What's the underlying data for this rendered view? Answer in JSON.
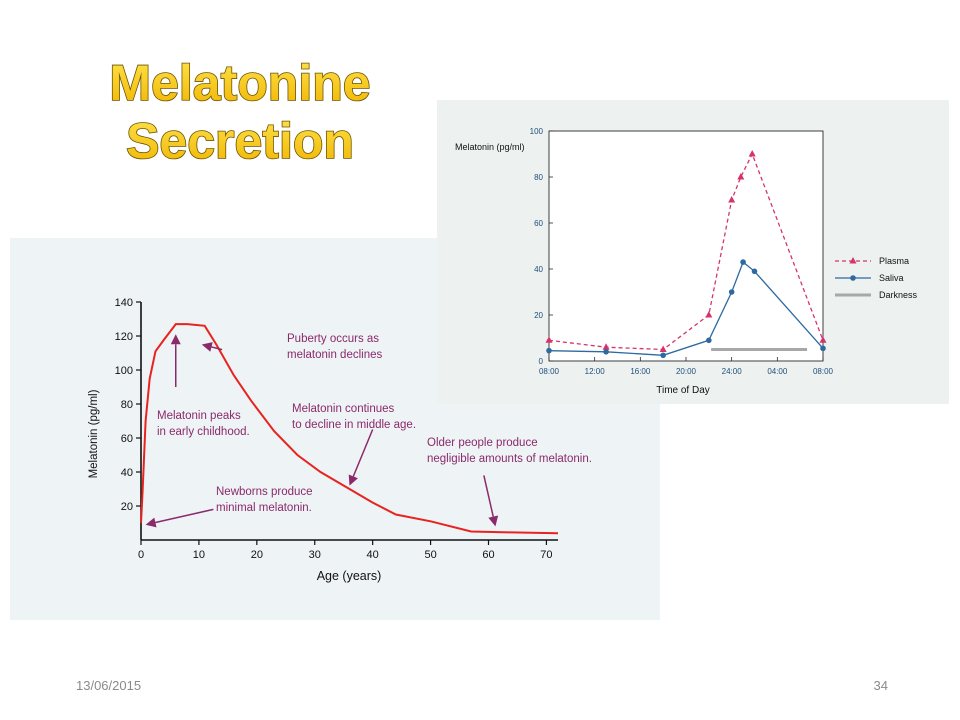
{
  "slide": {
    "title_line1": "Melatonine",
    "title_line2": "Secretion",
    "date": "13/06/2015",
    "page_number": "34"
  },
  "colors": {
    "title_fill": "#f2c200",
    "title_stroke": "#6b5300",
    "age_curve": "#e8231f",
    "arrow": "#8b2a6b",
    "axis_text_blue": "#1f4e79",
    "plasma": "#d6336c",
    "saliva": "#2e6aa0",
    "darkness": "#a8a8a8"
  },
  "chart_data": [
    {
      "id": "age_chart",
      "type": "line",
      "xlabel": "Age (years)",
      "ylabel": "Melatonin (pg/ml)",
      "xlim": [
        0,
        72
      ],
      "ylim": [
        0,
        140
      ],
      "xticks": [
        0,
        10,
        20,
        30,
        40,
        50,
        60,
        70
      ],
      "yticks": [
        20,
        40,
        60,
        80,
        100,
        120,
        140
      ],
      "x": [
        0,
        0.3,
        0.8,
        1.5,
        2.5,
        4,
        6,
        8,
        11,
        13,
        16,
        19,
        23,
        27,
        31,
        36,
        40,
        44,
        50,
        57,
        64,
        72
      ],
      "values": [
        10,
        30,
        70,
        95,
        111,
        118,
        127,
        127,
        126,
        115,
        97,
        82,
        64,
        50,
        40,
        30,
        22,
        15,
        11,
        5,
        4.5,
        4
      ],
      "annotations": [
        {
          "text": [
            "Puberty occurs as",
            "melatonin declines"
          ],
          "anchor": "left"
        },
        {
          "text": [
            "Melatonin peaks",
            "in early childhood."
          ],
          "anchor": "left"
        },
        {
          "text": [
            "Melatonin continues",
            "to decline in middle age."
          ],
          "anchor": "left"
        },
        {
          "text": [
            "Older people produce",
            "negligible amounts of melatonin."
          ],
          "anchor": "left"
        },
        {
          "text": [
            "Newborns produce",
            "minimal melatonin."
          ],
          "anchor": "left"
        }
      ],
      "arrows": [
        {
          "from": [
            14,
            112
          ],
          "to": [
            10.5,
            115
          ]
        },
        {
          "from": [
            6,
            90
          ],
          "to": [
            6,
            121
          ]
        },
        {
          "from": [
            40,
            65
          ],
          "to": [
            36,
            32
          ]
        },
        {
          "from": [
            59.2,
            38
          ],
          "to": [
            61.2,
            8
          ]
        },
        {
          "from": [
            12.5,
            18
          ],
          "to": [
            0.8,
            9
          ]
        }
      ]
    },
    {
      "id": "day_chart",
      "type": "line",
      "xlabel": "Time of Day",
      "ylabel": "Melatonin (pg/ml)",
      "xlim": [
        0,
        24
      ],
      "ylim": [
        0,
        100
      ],
      "xticks": [
        "08:00",
        "12:00",
        "16:00",
        "20:00",
        "24:00",
        "04:00",
        "08:00"
      ],
      "yticks": [
        0,
        20,
        40,
        60,
        80,
        100
      ],
      "legend_position": "right",
      "series": [
        {
          "name": "Plasma",
          "style": "dashed-triangle",
          "x": [
            0,
            5,
            10,
            14,
            16,
            16.8,
            17.8,
            24
          ],
          "values": [
            9,
            6,
            5,
            20,
            70,
            80,
            90,
            9
          ]
        },
        {
          "name": "Saliva",
          "style": "solid-circle",
          "x": [
            0,
            5,
            10,
            14,
            16,
            17,
            18,
            24
          ],
          "values": [
            4.5,
            4,
            2.5,
            9,
            30,
            43,
            39,
            5.5
          ]
        }
      ],
      "darkness": {
        "name": "Darkness",
        "x": [
          14.2,
          22.6
        ],
        "value": 5
      }
    }
  ]
}
